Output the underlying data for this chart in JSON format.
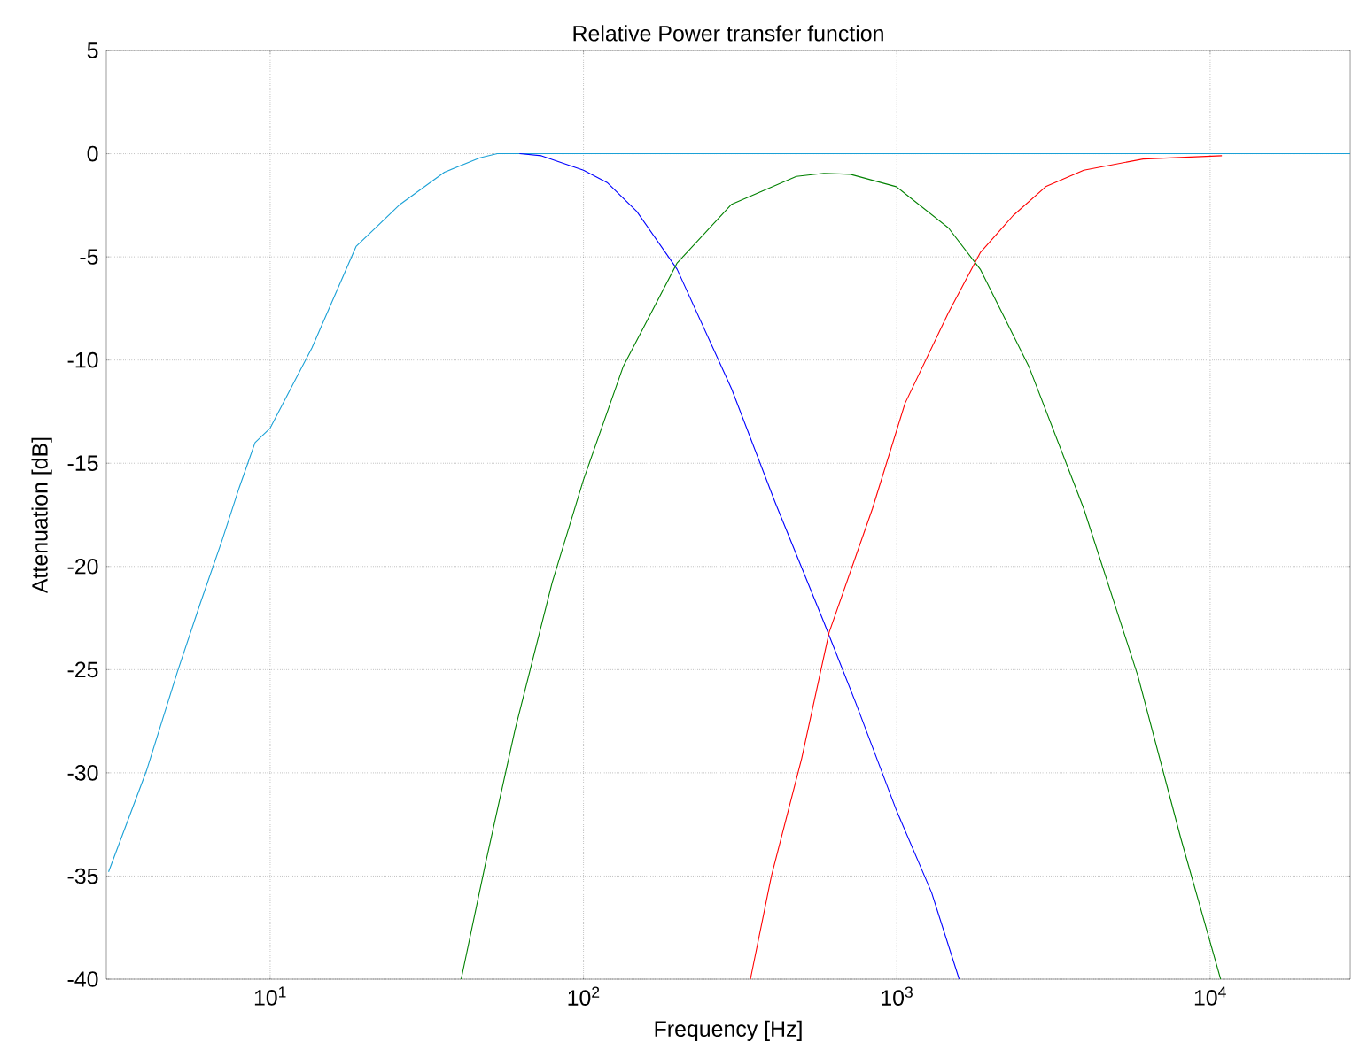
{
  "chart_data": {
    "type": "line",
    "title": "Relative Power transfer function",
    "xlabel": "Frequency [Hz]",
    "ylabel": "Attenuation [dB]",
    "log": "x",
    "grid": true,
    "xlim": [
      3,
      28000
    ],
    "ylim": [
      -40,
      5
    ],
    "xticks": [
      {
        "value": 10,
        "label": "10$^{1}$"
      },
      {
        "value": 100,
        "label": "10$^{2}$"
      },
      {
        "value": 1000,
        "label": "10$^{3}$"
      },
      {
        "value": 10000,
        "label": "10$^{4}$"
      }
    ],
    "yticks": [
      -40,
      -35,
      -30,
      -25,
      -20,
      -15,
      -10,
      -5,
      0,
      5
    ],
    "series": [
      {
        "color": "#1ba1d6",
        "x": [
          3.05,
          4.03,
          5.06,
          5.98,
          7.0,
          7.96,
          8.95,
          10,
          13.6,
          18.8,
          26,
          36,
          46.7,
          53.1,
          100,
          1000,
          10000,
          28000
        ],
        "values": [
          -34.8,
          -29.9,
          -25.1,
          -21.8,
          -18.8,
          -16.2,
          -14,
          -13.3,
          -9.4,
          -4.5,
          -2.45,
          -0.9,
          -0.2,
          0,
          0,
          0,
          0,
          0
        ]
      },
      {
        "color": "#0000ff",
        "x": [
          62.5,
          73.4,
          100,
          119,
          148,
          199,
          297,
          409,
          585,
          739,
          996,
          1291,
          1581
        ],
        "values": [
          0,
          -0.1,
          -0.8,
          -1.4,
          -2.8,
          -5.6,
          -11.4,
          -16.9,
          -22.7,
          -26.6,
          -31.8,
          -35.8,
          -40
        ]
      },
      {
        "color": "#008000",
        "x": [
          40.7,
          48.5,
          60.5,
          79.4,
          100,
          134,
          199,
          297,
          478,
          585,
          711,
          996,
          1462,
          1846,
          2637,
          3951,
          5880,
          8070,
          10800
        ],
        "values": [
          -40,
          -34.5,
          -27.9,
          -20.8,
          -15.8,
          -10.3,
          -5.3,
          -2.45,
          -1.1,
          -0.95,
          -1,
          -1.6,
          -3.6,
          -5.6,
          -10.3,
          -17.2,
          -25.3,
          -33.2,
          -40
        ]
      },
      {
        "color": "#ff0000",
        "x": [
          341,
          398,
          497,
          608,
          836,
          1062,
          1462,
          1846,
          2350,
          2987,
          3951,
          6110,
          10900
        ],
        "values": [
          -40,
          -35,
          -29.3,
          -23.2,
          -17.2,
          -12.1,
          -7.7,
          -4.8,
          -3,
          -1.6,
          -0.8,
          -0.26,
          -0.1
        ]
      }
    ]
  }
}
